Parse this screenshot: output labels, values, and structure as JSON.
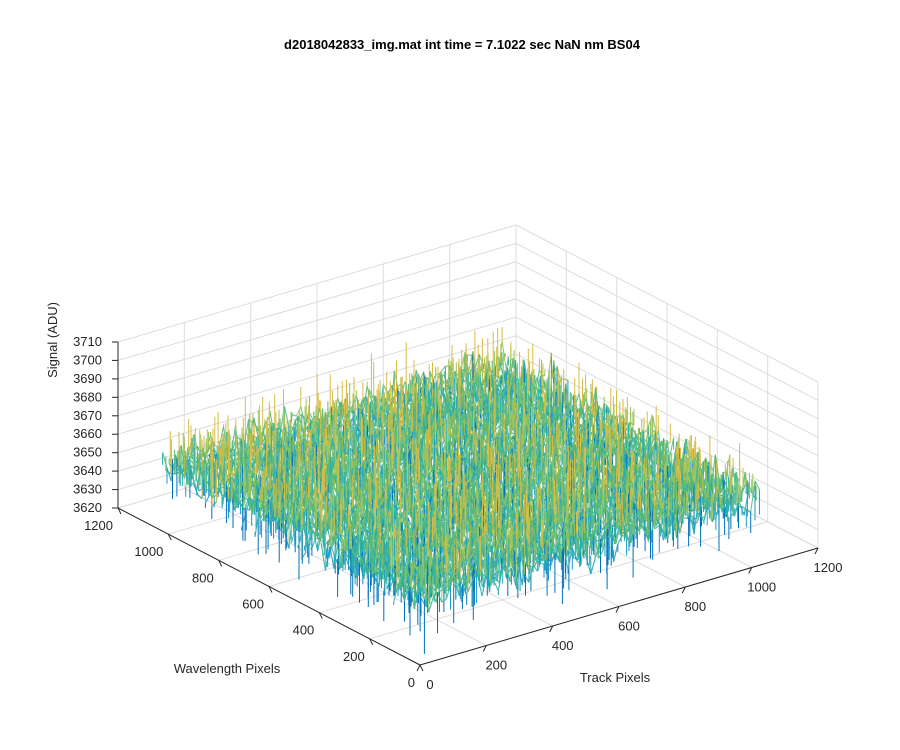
{
  "chart_data": {
    "type": "surface",
    "title": "d2018042833_img.mat int time = 7.1022 sec  NaN nm BS04",
    "xlabel": "Track Pixels",
    "ylabel": "Wavelength Pixels",
    "zlabel": "Signal (ADU)",
    "xlim": [
      0,
      1200
    ],
    "ylim": [
      0,
      1200
    ],
    "zlim": [
      3620,
      3710
    ],
    "xticks": [
      "0",
      "200",
      "400",
      "600",
      "800",
      "1000",
      "1200"
    ],
    "yticks": [
      "0",
      "200",
      "400",
      "600",
      "800",
      "1000",
      "1200"
    ],
    "zticks": [
      "3620",
      "3630",
      "3640",
      "3650",
      "3660",
      "3670",
      "3680",
      "3690",
      "3700",
      "3710"
    ],
    "data_extent": {
      "x": [
        1,
        1024
      ],
      "y": [
        1,
        1024
      ]
    },
    "signal_level": {
      "mean": 3657,
      "min": 3622,
      "max": 3699
    },
    "grid": true,
    "colormap": [
      "#0072bd",
      "#1a9bc4",
      "#2bb0a8",
      "#5cbb7a",
      "#9fc35a",
      "#d8bc45"
    ]
  }
}
